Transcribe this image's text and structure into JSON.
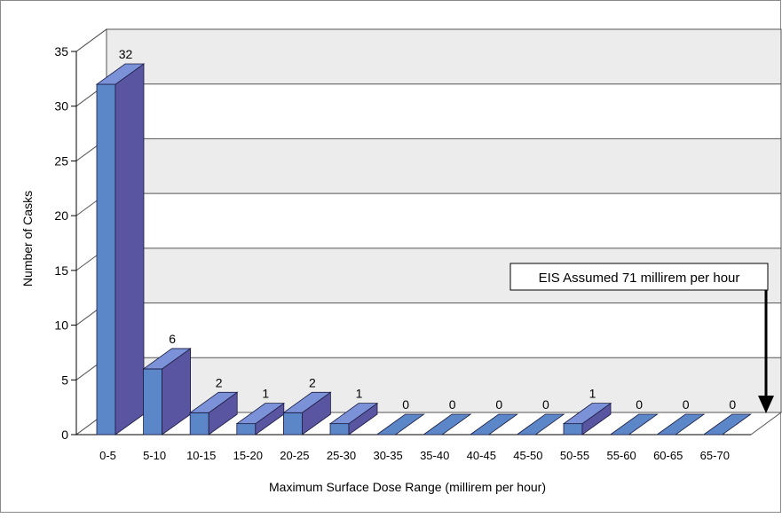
{
  "chart_data": {
    "type": "bar",
    "title": "",
    "xlabel": "Maximum Surface Dose Range (millirem per hour)",
    "ylabel": "Number of Casks",
    "ylim": [
      0,
      35
    ],
    "yticks": [
      0,
      5,
      10,
      15,
      20,
      25,
      30,
      35
    ],
    "categories": [
      "0-5",
      "5-10",
      "10-15",
      "15-20",
      "20-25",
      "25-30",
      "30-35",
      "35-40",
      "40-45",
      "45-50",
      "50-55",
      "55-60",
      "60-65",
      "65-70"
    ],
    "values": [
      32,
      6,
      2,
      1,
      2,
      1,
      0,
      0,
      0,
      0,
      1,
      0,
      0,
      0
    ],
    "data_labels": [
      "32",
      "6",
      "2",
      "1",
      "2",
      "1",
      "0",
      "0",
      "0",
      "0",
      "1",
      "0",
      "0",
      "0"
    ],
    "grid": true,
    "legend": false,
    "three_d": true,
    "annotation": {
      "text": "EIS Assumed 71 millirem per hour",
      "x_value": 71
    },
    "colors": {
      "bar_front": "#5b87c9",
      "bar_side": "#5a55a0",
      "bar_top": "#7b92d8",
      "wall_band": "#ececec",
      "floor": "#ffffff"
    }
  }
}
